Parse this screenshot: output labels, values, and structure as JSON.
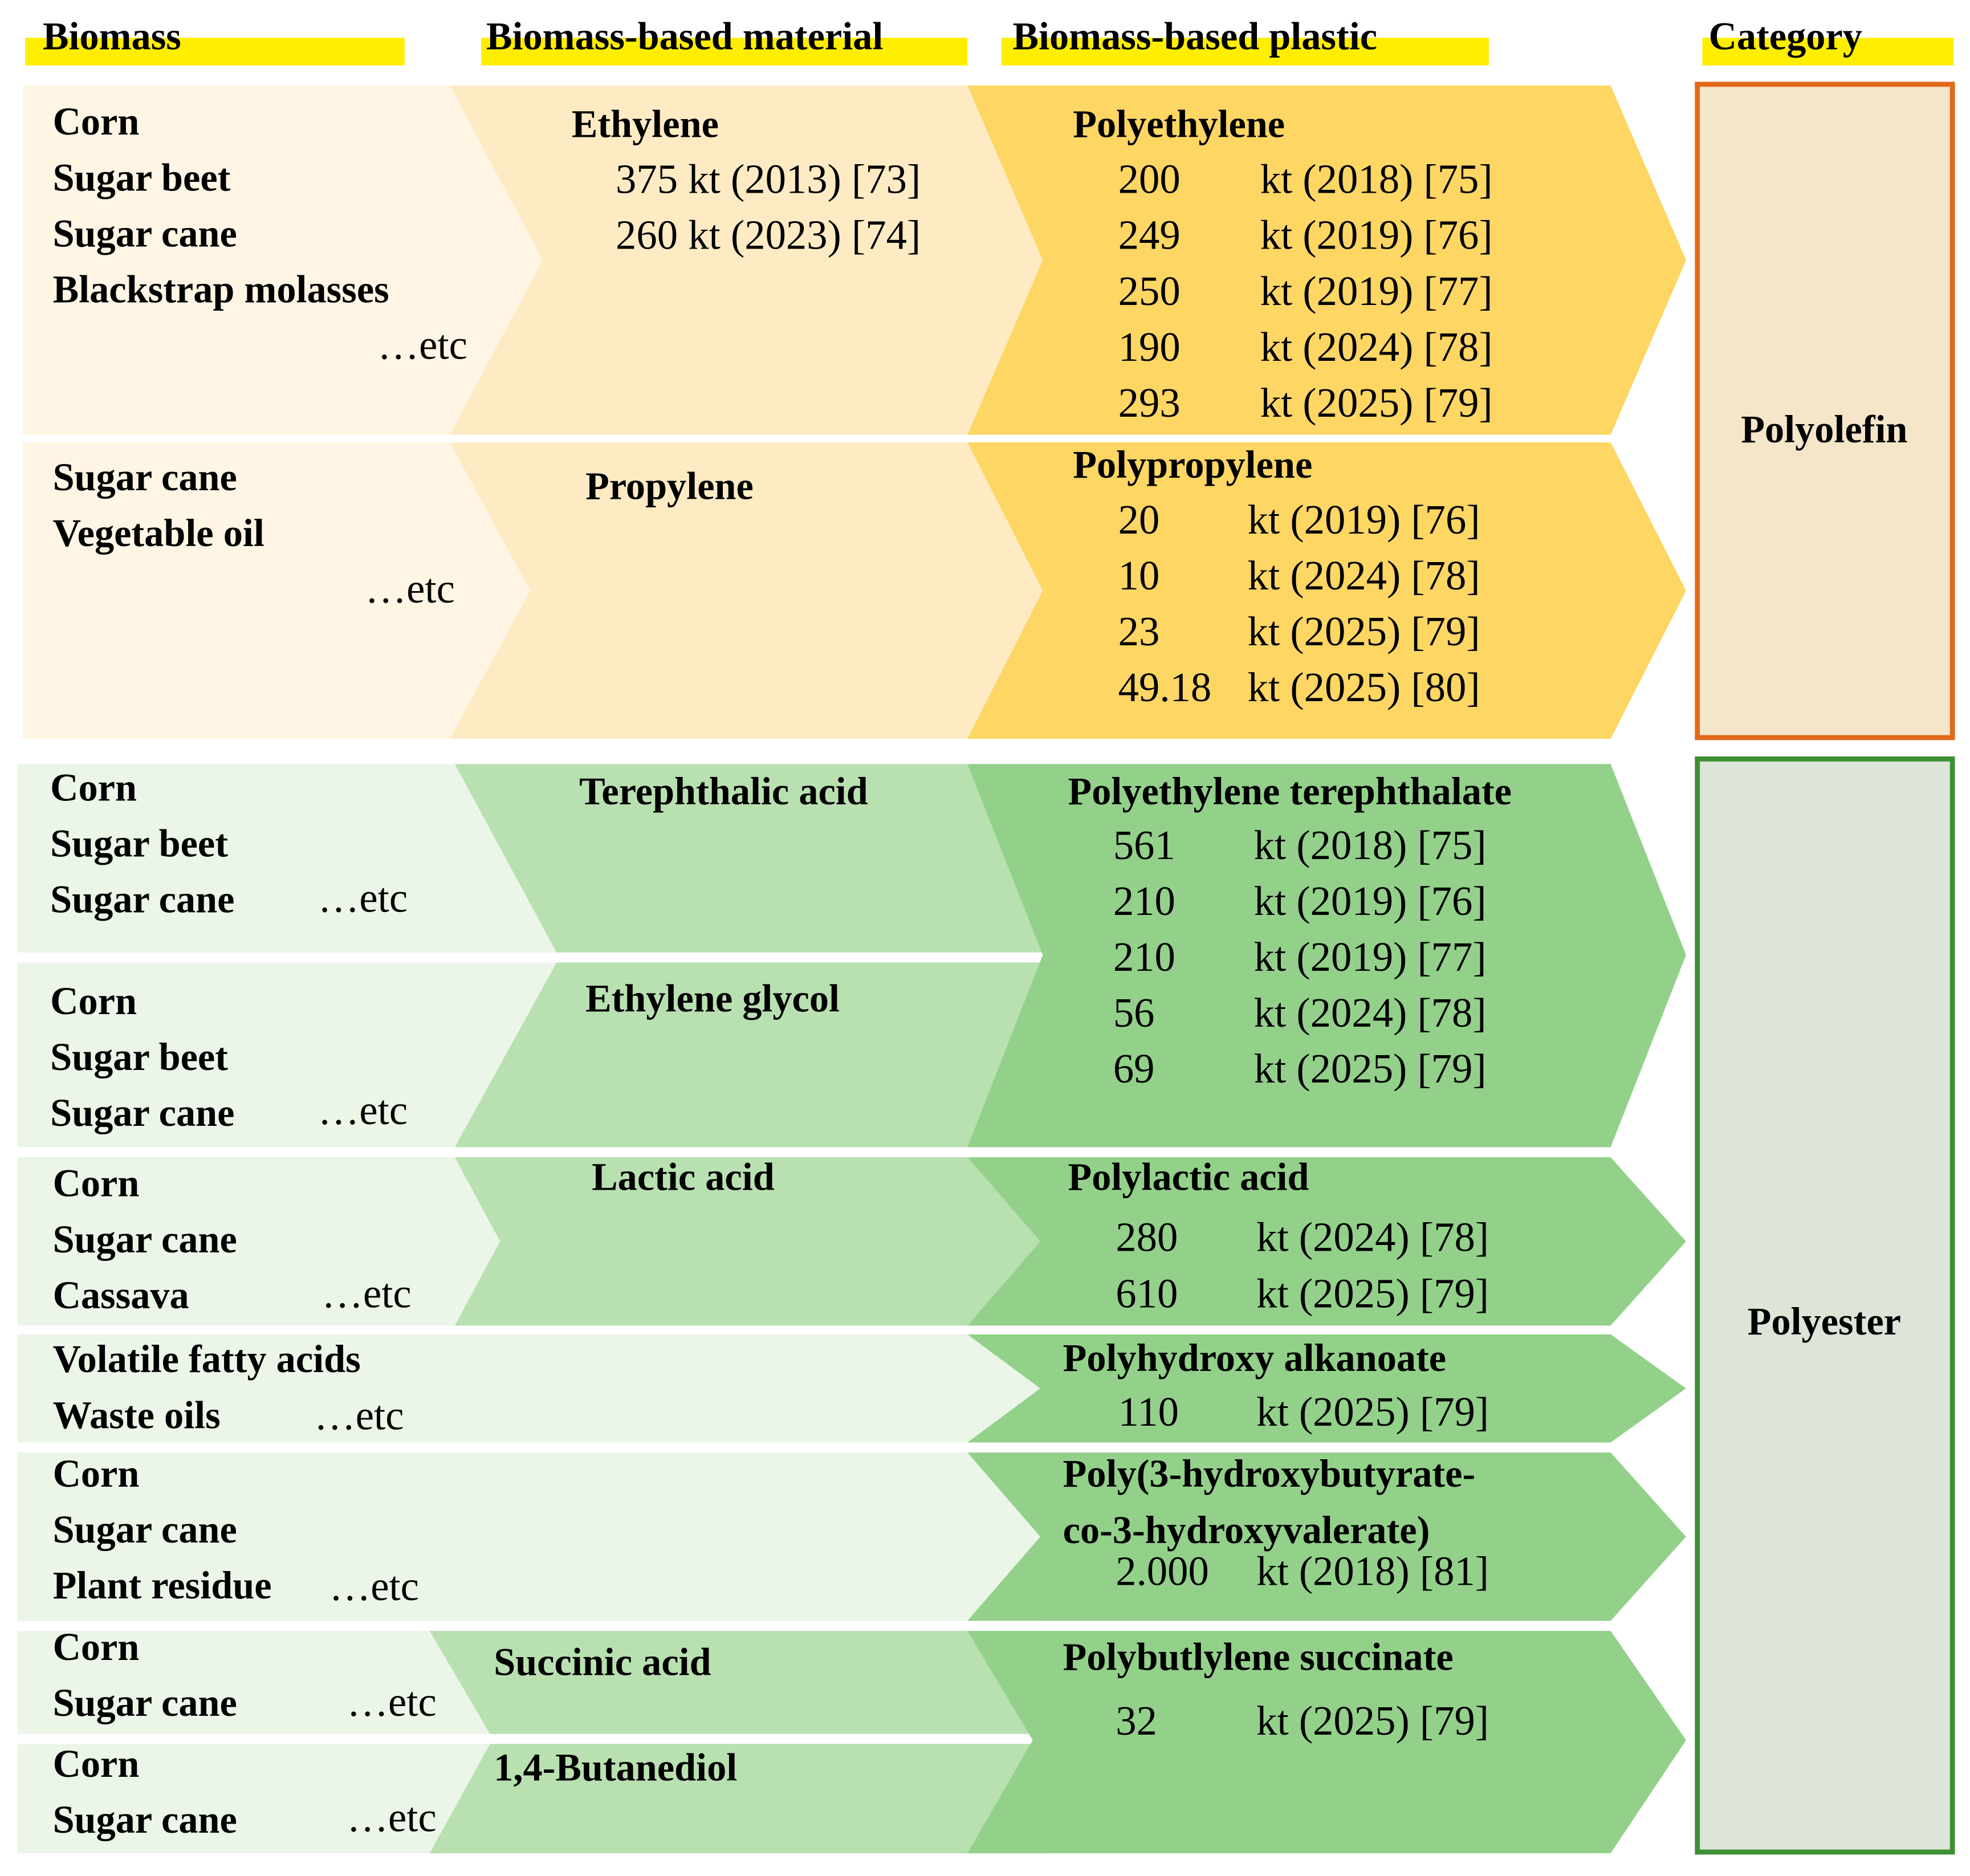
{
  "headers": [
    "Biomass",
    "Biomass-based material",
    "Biomass-based plastic",
    "Category"
  ],
  "biomass": [
    {
      "items": [
        "Corn",
        "Sugar beet",
        "Sugar cane",
        "Blackstrap molasses"
      ],
      "etc": "…etc"
    },
    {
      "items": [
        "Sugar cane",
        "Vegetable oil"
      ],
      "etc": "…etc"
    },
    {
      "items": [
        "Corn",
        "Sugar beet",
        "Sugar cane"
      ],
      "etc": "…etc"
    },
    {
      "items": [
        "Corn",
        "Sugar beet",
        "Sugar cane"
      ],
      "etc": "…etc"
    },
    {
      "items": [
        "Corn",
        "Sugar cane",
        "Cassava"
      ],
      "etc": "…etc"
    },
    {
      "items": [
        "Volatile fatty acids",
        "Waste oils"
      ],
      "etc": "…etc"
    },
    {
      "items": [
        "Corn",
        "Sugar cane",
        "Plant residue"
      ],
      "etc": "…etc"
    },
    {
      "items": [
        "Corn",
        "Sugar cane"
      ],
      "etc": "…etc"
    },
    {
      "items": [
        "Corn",
        "Sugar cane"
      ],
      "etc": "…etc"
    }
  ],
  "materials": [
    {
      "name": "Ethylene",
      "production": [
        "375 kt (2013) [73]",
        "260 kt (2023) [74]"
      ]
    },
    {
      "name": "Propylene"
    },
    {
      "name": "Terephthalic acid"
    },
    {
      "name": "Ethylene glycol"
    },
    {
      "name": "Lactic acid"
    },
    {
      "name": "Succinic acid"
    },
    {
      "name": "1,4-Butanediol"
    }
  ],
  "plastics": [
    {
      "name": "Polyethylene",
      "production": [
        {
          "amount": "200",
          "detail": "kt (2018) [75]"
        },
        {
          "amount": "249",
          "detail": "kt (2019) [76]"
        },
        {
          "amount": "250",
          "detail": "kt (2019) [77]"
        },
        {
          "amount": "190",
          "detail": "kt (2024) [78]"
        },
        {
          "amount": "293",
          "detail": "kt (2025) [79]"
        }
      ]
    },
    {
      "name": "Polypropylene",
      "production": [
        {
          "amount": "20",
          "detail": "kt (2019) [76]"
        },
        {
          "amount": "10",
          "detail": "kt (2024) [78]"
        },
        {
          "amount": "23",
          "detail": "kt (2025) [79]"
        },
        {
          "amount": "49.18",
          "detail": "kt (2025) [80]"
        }
      ]
    },
    {
      "name": "Polyethylene terephthalate",
      "production": [
        {
          "amount": "561",
          "detail": "kt (2018) [75]"
        },
        {
          "amount": "210",
          "detail": "kt (2019) [76]"
        },
        {
          "amount": "210",
          "detail": "kt (2019) [77]"
        },
        {
          "amount": "56",
          "detail": "kt (2024) [78]"
        },
        {
          "amount": "69",
          "detail": "kt (2025) [79]"
        }
      ]
    },
    {
      "name": "Polylactic acid",
      "production": [
        {
          "amount": "280",
          "detail": "kt (2024) [78]"
        },
        {
          "amount": "610",
          "detail": "kt (2025) [79]"
        }
      ]
    },
    {
      "name": "Polyhydroxy alkanoate",
      "production": [
        {
          "amount": "110",
          "detail": "kt (2025) [79]"
        }
      ]
    },
    {
      "name_lines": [
        "Poly(3-hydroxybutyrate-",
        "co-3-hydroxyvalerate)"
      ],
      "production": [
        {
          "amount": "2.000",
          "detail": "kt (2018) [81]"
        }
      ]
    },
    {
      "name": "Polybutlylene succinate",
      "production": [
        {
          "amount": "32",
          "detail": "kt (2025) [79]"
        }
      ]
    }
  ],
  "categories": [
    "Polyolefin",
    "Polyester"
  ]
}
